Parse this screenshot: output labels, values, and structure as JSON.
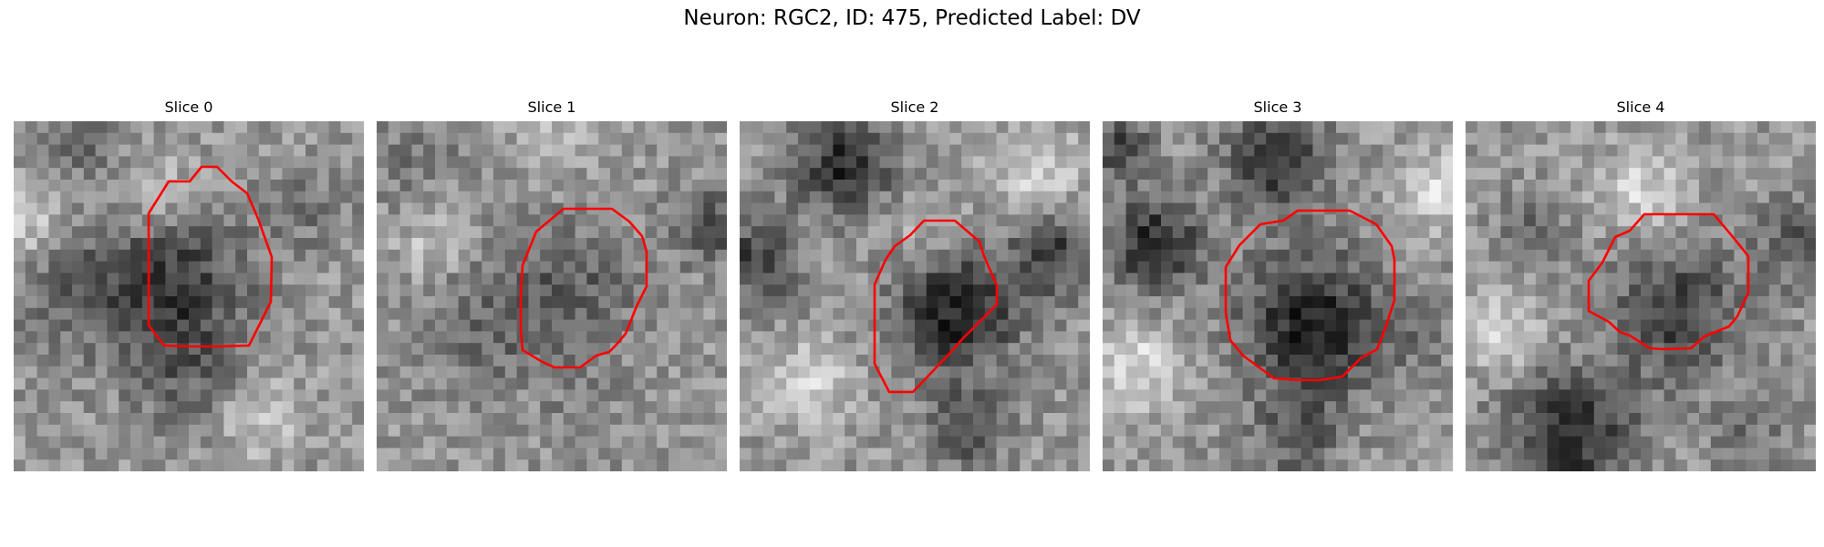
{
  "figure": {
    "title": "Neuron: RGC2, ID: 475, Predicted Label: DV"
  },
  "panels": [
    {
      "title": "Slice 0"
    },
    {
      "title": "Slice 1"
    },
    {
      "title": "Slice 2"
    },
    {
      "title": "Slice 3"
    },
    {
      "title": "Slice 4"
    }
  ],
  "colors": {
    "contour": "#ff0000",
    "background": "#ffffff"
  }
}
